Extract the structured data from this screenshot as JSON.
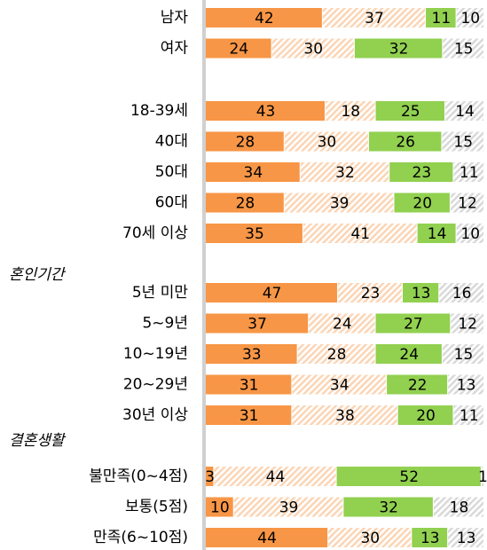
{
  "chart_data": [
    {
      "type": "bar",
      "categories": [
        "남자",
        "여자"
      ],
      "series": [
        {
          "color": "#f79646",
          "values": [
            42,
            24
          ]
        },
        {
          "color": "#fbd5b5",
          "hatched": true,
          "values": [
            37,
            30
          ]
        },
        {
          "color": "#92d050",
          "values": [
            11,
            32
          ]
        },
        {
          "color": "#d9d9d9",
          "hatched": true,
          "values": [
            10,
            15
          ]
        }
      ]
    },
    {
      "type": "bar",
      "categories": [
        "18-39세",
        "40대",
        "50대",
        "60대",
        "70세 이상"
      ],
      "series": [
        {
          "color": "#f79646",
          "values": [
            43,
            28,
            34,
            28,
            35
          ]
        },
        {
          "color": "#fbd5b5",
          "hatched": true,
          "values": [
            18,
            30,
            32,
            39,
            41
          ]
        },
        {
          "color": "#92d050",
          "values": [
            25,
            26,
            23,
            20,
            14
          ]
        },
        {
          "color": "#d9d9d9",
          "hatched": true,
          "values": [
            14,
            15,
            11,
            12,
            10
          ]
        }
      ]
    },
    {
      "type": "bar",
      "title": "혼인기간",
      "categories": [
        "5년 미만",
        "5~9년",
        "10~19년",
        "20~29년",
        "30년 이상"
      ],
      "series": [
        {
          "color": "#f79646",
          "values": [
            47,
            37,
            33,
            31,
            31
          ]
        },
        {
          "color": "#fbd5b5",
          "hatched": true,
          "values": [
            23,
            24,
            28,
            34,
            38
          ]
        },
        {
          "color": "#92d050",
          "values": [
            13,
            27,
            24,
            22,
            20
          ]
        },
        {
          "color": "#d9d9d9",
          "hatched": true,
          "values": [
            16,
            12,
            15,
            13,
            11
          ]
        }
      ]
    },
    {
      "type": "bar",
      "title": "결혼생활",
      "categories": [
        "불만족(0~4점)",
        "보통(5점)",
        "만족(6~10점)"
      ],
      "series": [
        {
          "color": "#f79646",
          "values": [
            3,
            10,
            44
          ]
        },
        {
          "color": "#fbd5b5",
          "hatched": true,
          "values": [
            44,
            39,
            30
          ]
        },
        {
          "color": "#92d050",
          "values": [
            52,
            32,
            13
          ]
        },
        {
          "color": "#d9d9d9",
          "hatched": true,
          "values": [
            1,
            18,
            13
          ]
        }
      ]
    }
  ]
}
